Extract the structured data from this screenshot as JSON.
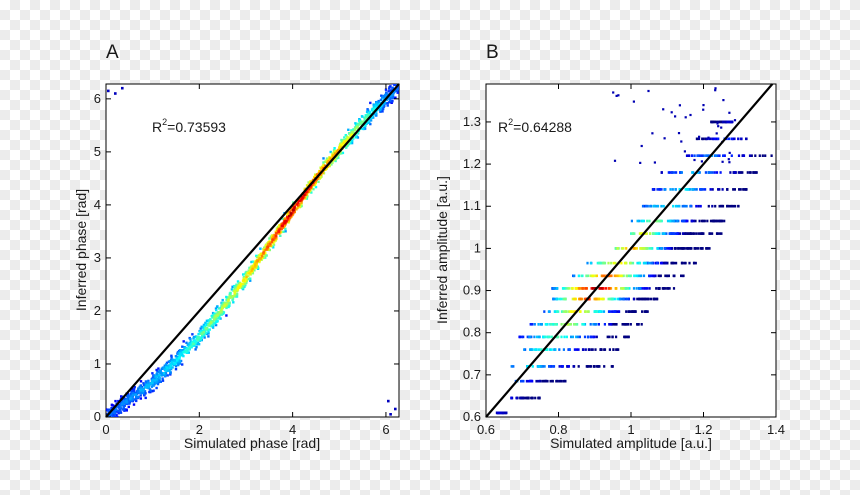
{
  "chart_data": [
    {
      "type": "scatter",
      "panel": "A",
      "xlabel": "Simulated phase [rad]",
      "ylabel": "Inferred phase [rad]",
      "xlim": [
        0,
        6.28
      ],
      "ylim": [
        0,
        6.28
      ],
      "xticks": [
        0,
        2,
        4,
        6
      ],
      "yticks": [
        0,
        1,
        2,
        3,
        4,
        5,
        6
      ],
      "r2_prefix": "R",
      "r2_sup": "2",
      "r2_value": "=0.73593",
      "fit_line": [
        [
          0,
          0
        ],
        [
          6.28,
          6.28
        ]
      ],
      "density_color": "jet colormap (blue = low, red = high)",
      "ridge": [
        [
          0.0,
          0.0,
          0.2
        ],
        [
          0.5,
          0.33,
          0.25
        ],
        [
          1.0,
          0.66,
          0.3
        ],
        [
          1.5,
          1.06,
          0.35
        ],
        [
          2.0,
          1.5,
          0.45
        ],
        [
          2.5,
          2.05,
          0.55
        ],
        [
          3.0,
          2.62,
          0.65
        ],
        [
          3.5,
          3.25,
          0.8
        ],
        [
          4.0,
          3.88,
          0.95
        ],
        [
          4.5,
          4.5,
          0.85
        ],
        [
          5.0,
          5.05,
          0.7
        ],
        [
          5.5,
          5.55,
          0.5
        ],
        [
          6.0,
          6.0,
          0.3
        ],
        [
          6.28,
          6.2,
          0.2
        ]
      ],
      "outliers": [
        [
          0.05,
          6.15
        ],
        [
          0.2,
          6.1
        ],
        [
          0.35,
          6.2
        ],
        [
          6.1,
          0.05
        ],
        [
          6.2,
          0.15
        ],
        [
          6.05,
          0.3
        ]
      ]
    },
    {
      "type": "scatter",
      "panel": "B",
      "xlabel": "Simulated amplitude [a.u.]",
      "ylabel": "Inferred amplitude [a.u.]",
      "xlim": [
        0.6,
        1.4
      ],
      "ylim": [
        0.6,
        1.39
      ],
      "xticks": [
        0.6,
        0.8,
        1,
        1.2,
        1.4
      ],
      "yticks": [
        0.6,
        0.7,
        0.8,
        0.9,
        1,
        1.1,
        1.2,
        1.3
      ],
      "r2_prefix": "R",
      "r2_sup": "2",
      "r2_value": "=0.64288",
      "fit_line": [
        [
          0.6,
          0.6
        ],
        [
          1.39,
          1.39
        ]
      ],
      "density_color": "jet colormap (blue = low, red = high)",
      "bands": [
        [
          0.61,
          0.63,
          0.66,
          0.1
        ],
        [
          0.645,
          0.67,
          0.75,
          0.15
        ],
        [
          0.685,
          0.68,
          0.82,
          0.25
        ],
        [
          0.72,
          0.66,
          0.95,
          0.35
        ],
        [
          0.76,
          0.7,
          0.98,
          0.4
        ],
        [
          0.79,
          0.69,
          1.0,
          0.45
        ],
        [
          0.82,
          0.72,
          1.03,
          0.55
        ],
        [
          0.85,
          0.76,
          1.05,
          0.65
        ],
        [
          0.88,
          0.78,
          1.08,
          0.85
        ],
        [
          0.905,
          0.78,
          1.12,
          1.0
        ],
        [
          0.935,
          0.84,
          1.15,
          0.8
        ],
        [
          0.965,
          0.88,
          1.18,
          0.65
        ],
        [
          1.0,
          0.95,
          1.22,
          0.75
        ],
        [
          1.035,
          1.0,
          1.25,
          0.6
        ],
        [
          1.065,
          1.0,
          1.26,
          0.5
        ],
        [
          1.1,
          1.03,
          1.3,
          0.4
        ],
        [
          1.14,
          1.06,
          1.32,
          0.35
        ],
        [
          1.18,
          1.08,
          1.35,
          0.3
        ],
        [
          1.22,
          1.14,
          1.39,
          0.25
        ],
        [
          1.26,
          1.18,
          1.32,
          0.15
        ],
        [
          1.3,
          1.22,
          1.28,
          0.1
        ]
      ]
    }
  ]
}
